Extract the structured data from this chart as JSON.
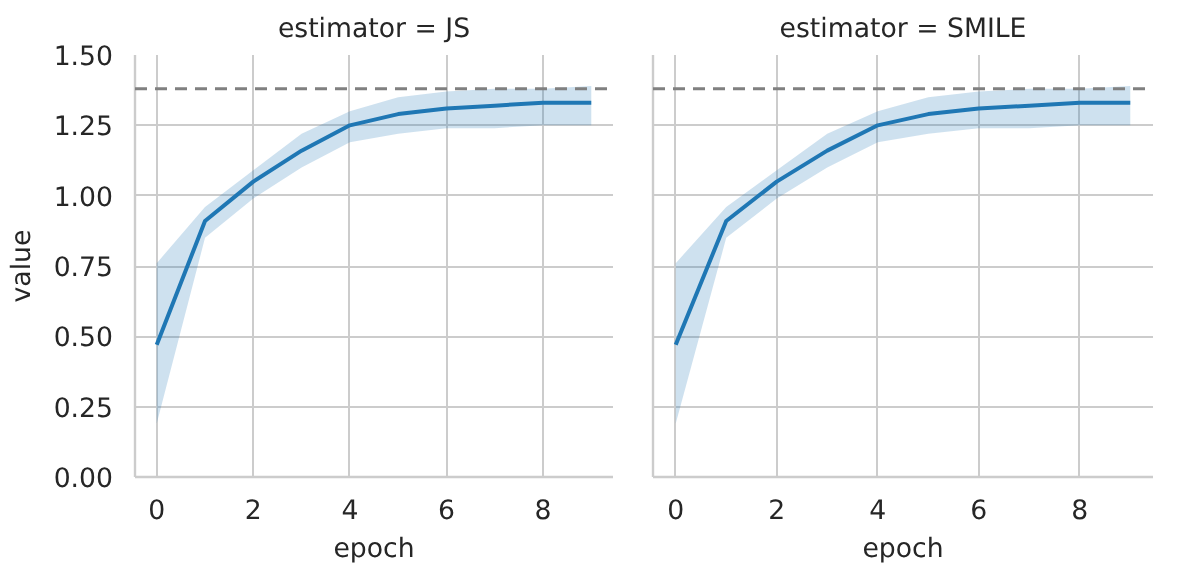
{
  "chart_data": [
    {
      "type": "line",
      "title": "estimator = JS",
      "xlabel": "epoch",
      "ylabel": "value",
      "x": [
        0,
        1,
        2,
        3,
        4,
        5,
        6,
        7,
        8,
        9
      ],
      "series": [
        {
          "color": "#1f77b4",
          "values": [
            0.47,
            0.91,
            1.05,
            1.16,
            1.25,
            1.29,
            1.31,
            1.32,
            1.33,
            1.33
          ],
          "lower": [
            0.19,
            0.85,
            0.99,
            1.1,
            1.19,
            1.22,
            1.24,
            1.24,
            1.25,
            1.25
          ],
          "upper": [
            0.76,
            0.96,
            1.09,
            1.22,
            1.3,
            1.35,
            1.37,
            1.38,
            1.38,
            1.39
          ]
        }
      ],
      "xlim": [
        -0.45,
        9.45
      ],
      "xticks": [
        0,
        2,
        4,
        6,
        8
      ],
      "ylim": [
        0,
        1.5
      ],
      "yticks": [
        {
          "value": 0,
          "label": "0.00"
        },
        {
          "value": 0.25,
          "label": "0.25"
        },
        {
          "value": 0.5,
          "label": "0.50"
        },
        {
          "value": 0.75,
          "label": "0.75"
        },
        {
          "value": 1,
          "label": "1.00"
        },
        {
          "value": 1.25,
          "label": "1.25"
        },
        {
          "value": 1.5,
          "label": "1.50"
        }
      ],
      "ref_lines": [
        {
          "axis": "y",
          "value": 1.38,
          "color": "#808080",
          "line_style": "dashed"
        }
      ],
      "grid": true,
      "marker": "none",
      "line_style": "solid"
    },
    {
      "type": "line",
      "title": "estimator = SMILE",
      "xlabel": "epoch",
      "x": [
        0,
        1,
        2,
        3,
        4,
        5,
        6,
        7,
        8,
        9
      ],
      "series": [
        {
          "color": "#1f77b4",
          "values": [
            0.47,
            0.91,
            1.05,
            1.16,
            1.25,
            1.29,
            1.31,
            1.32,
            1.33,
            1.33
          ],
          "lower": [
            0.19,
            0.85,
            0.99,
            1.1,
            1.19,
            1.22,
            1.24,
            1.24,
            1.25,
            1.25
          ],
          "upper": [
            0.76,
            0.96,
            1.09,
            1.22,
            1.3,
            1.35,
            1.37,
            1.38,
            1.38,
            1.39
          ]
        }
      ],
      "xlim": [
        -0.45,
        9.45
      ],
      "xticks": [
        0,
        2,
        4,
        6,
        8
      ],
      "ylim": [
        0,
        1.5
      ],
      "yticks": [
        {
          "value": 0,
          "label": null
        },
        {
          "value": 0.25,
          "label": null
        },
        {
          "value": 0.5,
          "label": null
        },
        {
          "value": 0.75,
          "label": null
        },
        {
          "value": 1,
          "label": null
        },
        {
          "value": 1.25,
          "label": null
        },
        {
          "value": 1.5,
          "label": null
        }
      ],
      "ref_lines": [
        {
          "axis": "y",
          "value": 1.38,
          "color": "#808080",
          "line_style": "dashed"
        }
      ],
      "grid": true,
      "marker": "none",
      "line_style": "solid",
      "tick_labels": "x"
    }
  ]
}
